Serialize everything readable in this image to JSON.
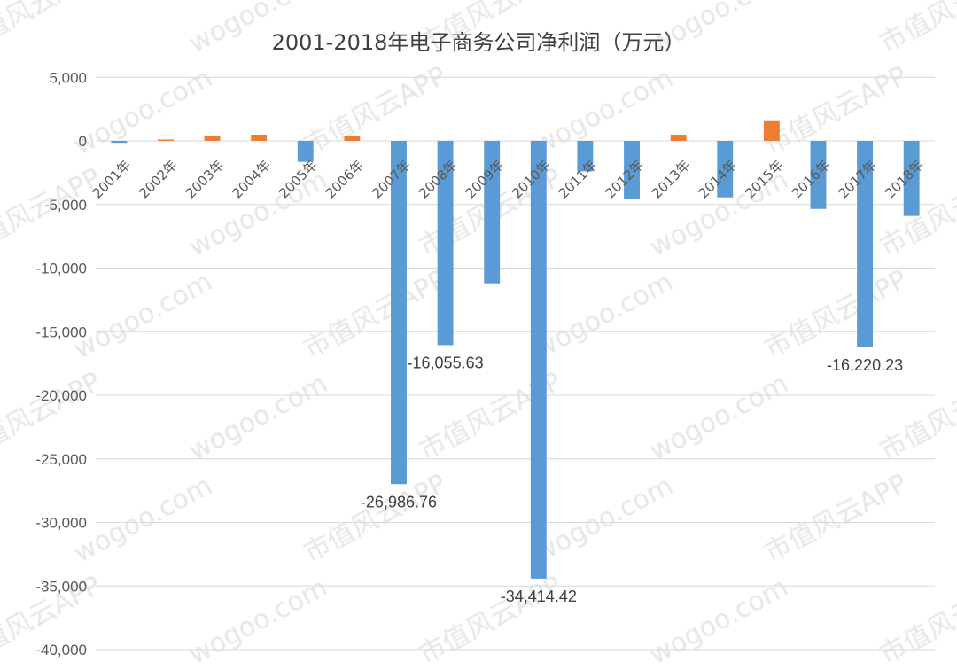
{
  "chart_data": {
    "type": "bar",
    "title": "2001-2018年电子商务公司净利润（万元）",
    "xlabel": "",
    "ylabel": "",
    "ylim": [
      -40000,
      5000
    ],
    "yticks": [
      5000,
      0,
      -5000,
      -10000,
      -15000,
      -20000,
      -25000,
      -30000,
      -35000,
      -40000
    ],
    "ytick_labels": [
      "5,000",
      "0",
      "-5,000",
      "-10,000",
      "-15,000",
      "-20,000",
      "-25,000",
      "-30,000",
      "-35,000",
      "-40,000"
    ],
    "grid": true,
    "categories": [
      "2001年",
      "2002年",
      "2003年",
      "2004年",
      "2005年",
      "2006年",
      "2007年",
      "2008年",
      "2009年",
      "2010年",
      "2011年",
      "2012年",
      "2013年",
      "2014年",
      "2015年",
      "2016年",
      "2017年",
      "2018年"
    ],
    "values": [
      -150,
      0,
      350,
      490,
      -1650,
      350,
      -26986.76,
      -16055.63,
      -11200,
      -34414.42,
      -2400,
      -4580,
      490,
      -4440,
      1620,
      -5350,
      -16220.23,
      -5900
    ],
    "data_labels": [
      {
        "index": 6,
        "text": "-26,986.76"
      },
      {
        "index": 7,
        "text": "-16,055.63"
      },
      {
        "index": 9,
        "text": "-34,414.42"
      },
      {
        "index": 16,
        "text": "-16,220.23"
      }
    ],
    "colors": {
      "negative": "#5b9bd5",
      "positive": "#ed7d31",
      "grid": "#d9d9d9"
    }
  },
  "watermark": {
    "text_a": "wogoo.com",
    "text_b": "市值风云APP"
  }
}
